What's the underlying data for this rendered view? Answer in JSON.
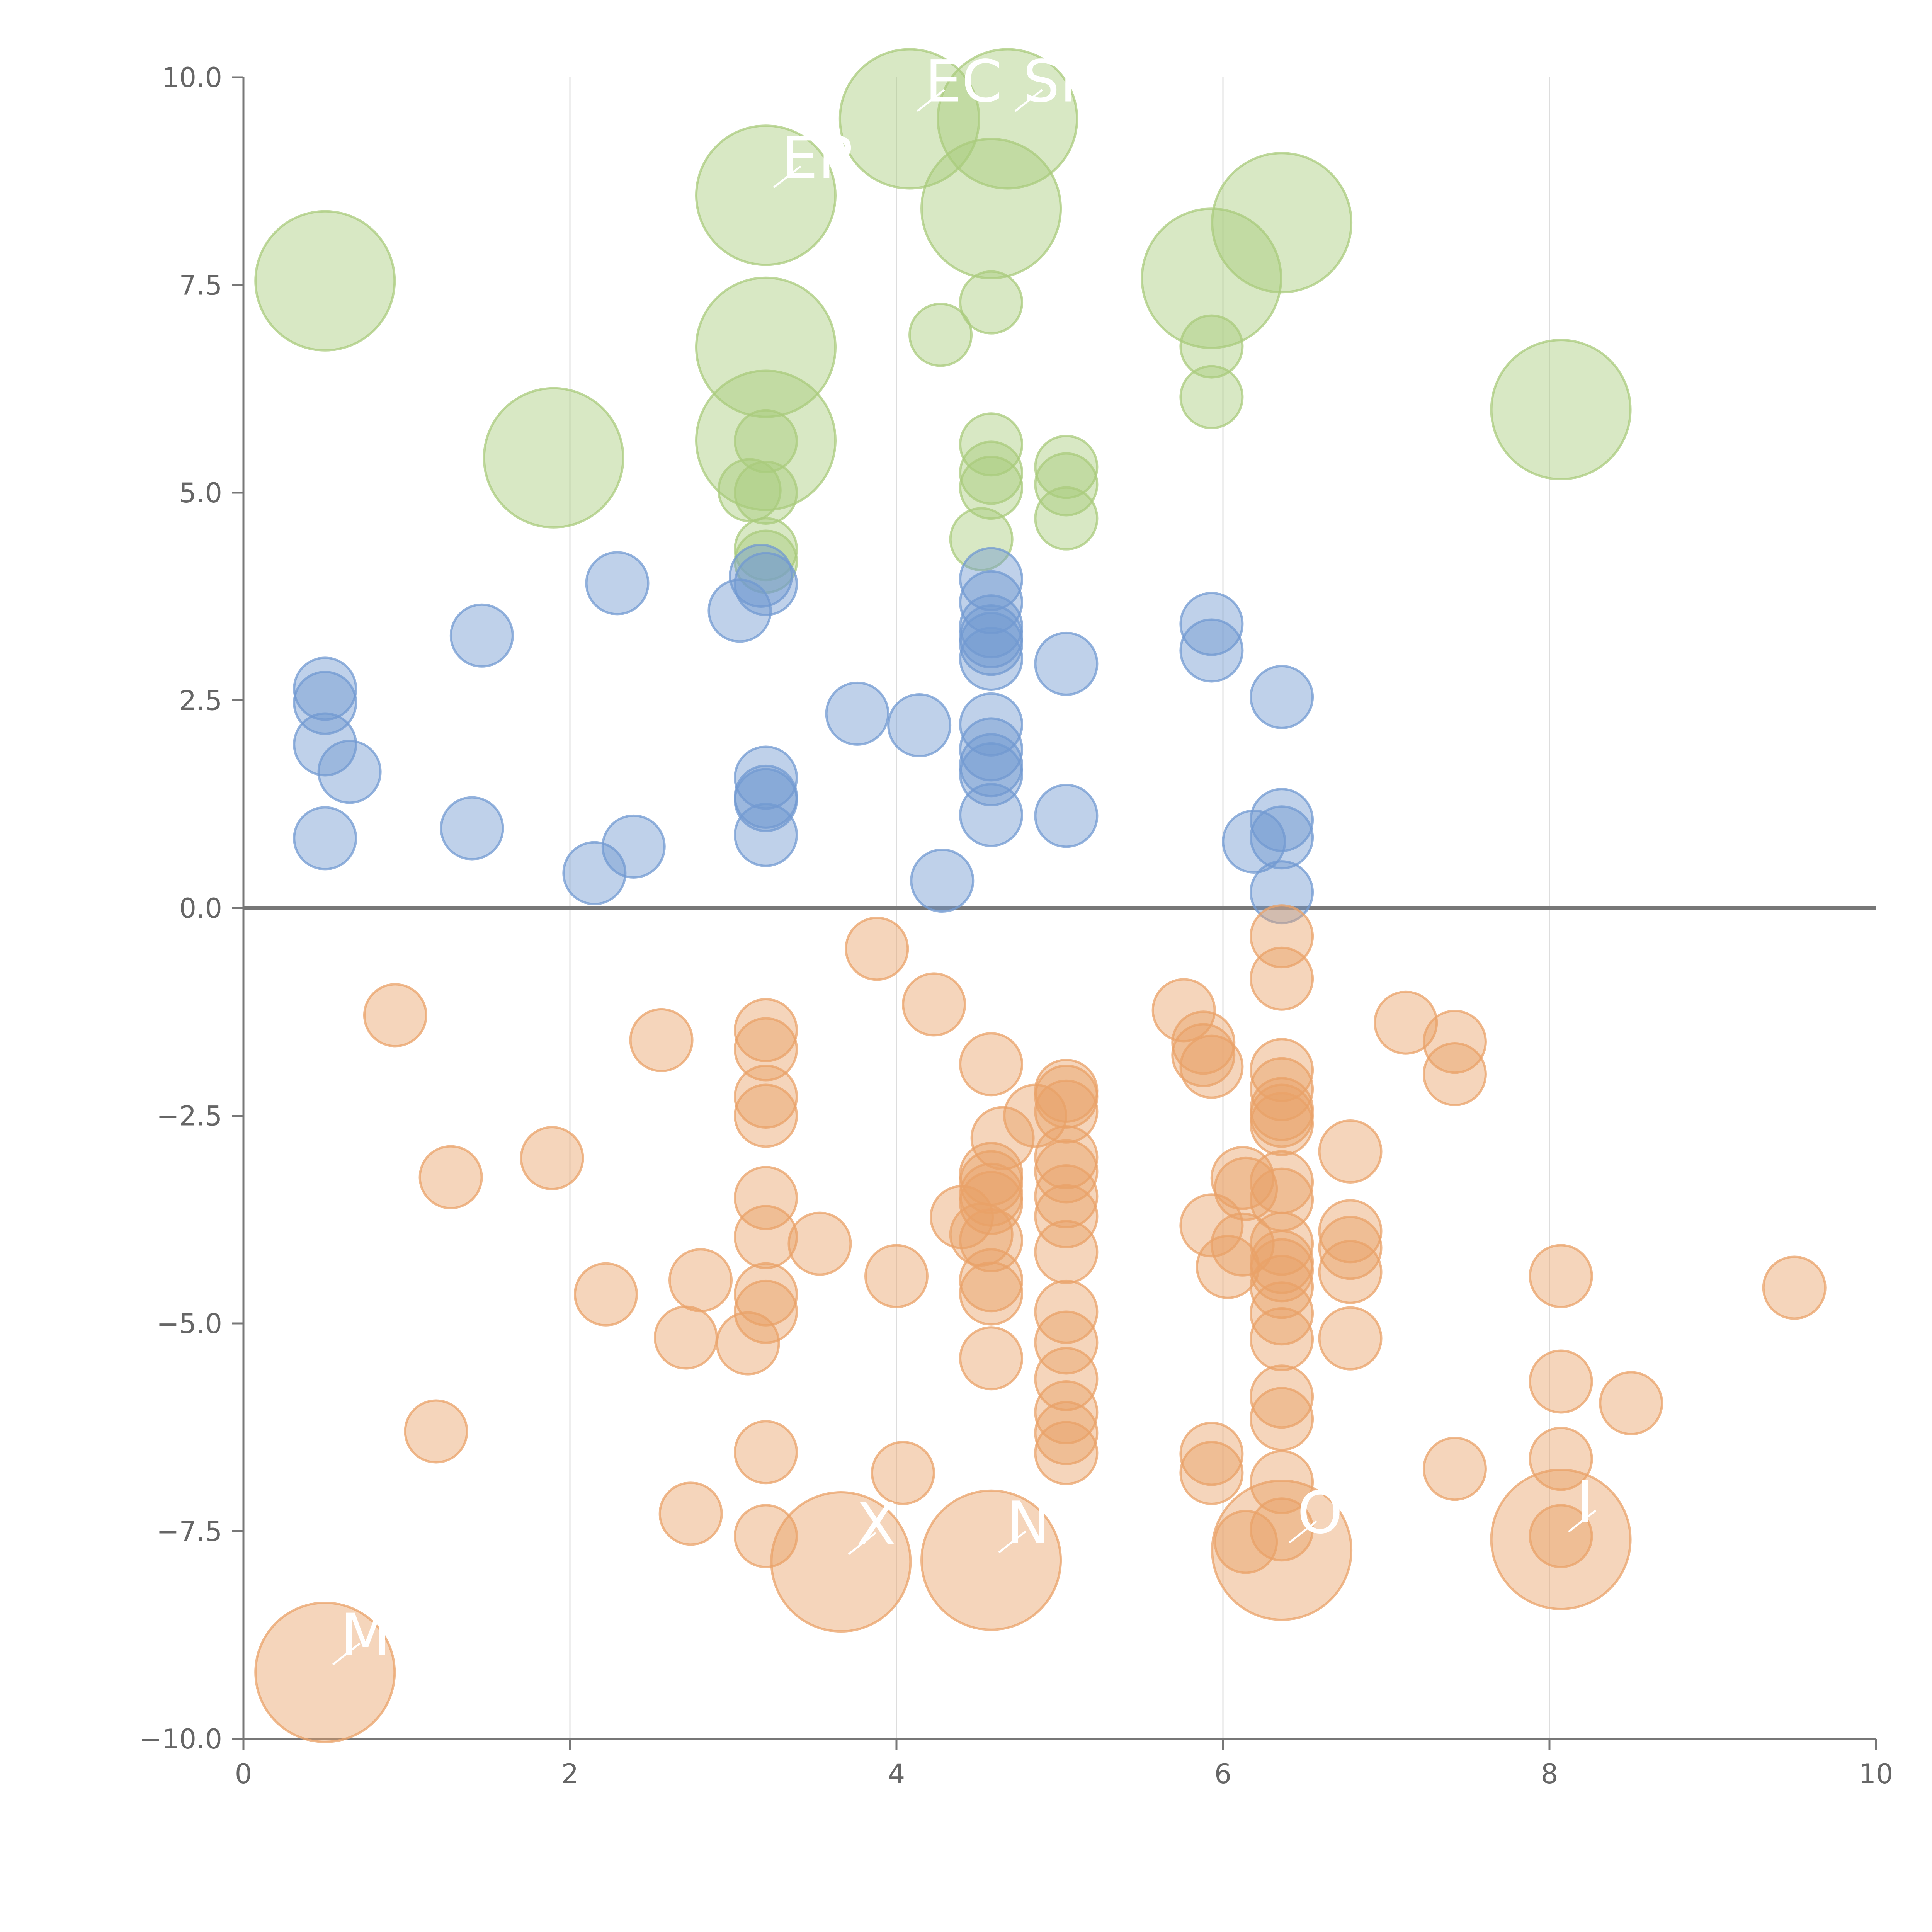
{
  "chart_data": {
    "type": "scatter",
    "title": "",
    "xlabel": "",
    "ylabel": "",
    "xlim": [
      0,
      10
    ],
    "ylim": [
      -10,
      10
    ],
    "x_ticks": [
      "0",
      "2",
      "4",
      "6",
      "8",
      "10"
    ],
    "y_ticks": [
      "10.0",
      "7.5",
      "5.0",
      "2.5",
      "0.0",
      "−2.5",
      "−5.0",
      "−7.5",
      "−10.0"
    ],
    "grid": "vertical",
    "colors": {
      "green": "#a9cb7c",
      "blue": "#7199d1",
      "orange": "#e9a168",
      "axis": "#777777",
      "grid": "#dddddd"
    },
    "series": [
      {
        "name": "green",
        "color": "#a9cb7c",
        "points": [
          {
            "x": 0.5,
            "y": 7.55,
            "s": "l"
          },
          {
            "x": 1.9,
            "y": 5.42,
            "s": "l"
          },
          {
            "x": 3.2,
            "y": 8.58,
            "s": "l"
          },
          {
            "x": 3.2,
            "y": 6.75,
            "s": "l"
          },
          {
            "x": 3.2,
            "y": 5.63,
            "s": "l"
          },
          {
            "x": 4.08,
            "y": 9.5,
            "s": "l"
          },
          {
            "x": 4.68,
            "y": 9.5,
            "s": "l"
          },
          {
            "x": 4.58,
            "y": 8.42,
            "s": "l"
          },
          {
            "x": 5.93,
            "y": 7.58,
            "s": "l"
          },
          {
            "x": 6.36,
            "y": 8.25,
            "s": "l"
          },
          {
            "x": 8.07,
            "y": 6.0,
            "s": "l"
          },
          {
            "x": 3.2,
            "y": 5.62,
            "s": "s"
          },
          {
            "x": 3.1,
            "y": 5.03,
            "s": "s"
          },
          {
            "x": 3.2,
            "y": 5.0,
            "s": "s"
          },
          {
            "x": 3.2,
            "y": 4.32,
            "s": "s"
          },
          {
            "x": 3.2,
            "y": 4.17,
            "s": "s"
          },
          {
            "x": 4.27,
            "y": 6.9,
            "s": "s"
          },
          {
            "x": 4.58,
            "y": 7.29,
            "s": "s"
          },
          {
            "x": 4.58,
            "y": 5.58,
            "s": "s"
          },
          {
            "x": 4.58,
            "y": 5.24,
            "s": "s"
          },
          {
            "x": 4.58,
            "y": 5.06,
            "s": "s"
          },
          {
            "x": 4.52,
            "y": 4.44,
            "s": "s"
          },
          {
            "x": 5.04,
            "y": 5.31,
            "s": "s"
          },
          {
            "x": 5.04,
            "y": 5.1,
            "s": "s"
          },
          {
            "x": 5.04,
            "y": 4.69,
            "s": "s"
          },
          {
            "x": 5.93,
            "y": 6.76,
            "s": "s"
          },
          {
            "x": 5.93,
            "y": 6.15,
            "s": "s"
          }
        ]
      },
      {
        "name": "blue",
        "color": "#7199d1",
        "points": [
          {
            "x": 0.5,
            "y": 2.64
          },
          {
            "x": 0.5,
            "y": 2.47
          },
          {
            "x": 0.5,
            "y": 1.97
          },
          {
            "x": 0.65,
            "y": 1.64
          },
          {
            "x": 0.5,
            "y": 0.84
          },
          {
            "x": 1.4,
            "y": 0.96
          },
          {
            "x": 1.46,
            "y": 3.28
          },
          {
            "x": 2.15,
            "y": 0.42
          },
          {
            "x": 2.29,
            "y": 3.91
          },
          {
            "x": 2.39,
            "y": 0.74
          },
          {
            "x": 3.04,
            "y": 3.58
          },
          {
            "x": 3.17,
            "y": 4.0
          },
          {
            "x": 3.2,
            "y": 3.9
          },
          {
            "x": 3.2,
            "y": 1.57
          },
          {
            "x": 3.2,
            "y": 1.34
          },
          {
            "x": 3.2,
            "y": 1.3
          },
          {
            "x": 3.2,
            "y": 0.88
          },
          {
            "x": 3.76,
            "y": 2.34
          },
          {
            "x": 4.14,
            "y": 2.2
          },
          {
            "x": 4.28,
            "y": 0.33
          },
          {
            "x": 4.58,
            "y": 3.96
          },
          {
            "x": 4.58,
            "y": 3.68
          },
          {
            "x": 4.58,
            "y": 3.39
          },
          {
            "x": 4.58,
            "y": 3.27
          },
          {
            "x": 4.58,
            "y": 3.18
          },
          {
            "x": 4.58,
            "y": 3.0
          },
          {
            "x": 4.58,
            "y": 2.21
          },
          {
            "x": 4.58,
            "y": 1.91
          },
          {
            "x": 4.58,
            "y": 1.72
          },
          {
            "x": 4.58,
            "y": 1.61
          },
          {
            "x": 4.58,
            "y": 1.12
          },
          {
            "x": 5.04,
            "y": 2.94
          },
          {
            "x": 5.04,
            "y": 1.11
          },
          {
            "x": 5.93,
            "y": 3.42
          },
          {
            "x": 5.93,
            "y": 3.1
          },
          {
            "x": 6.19,
            "y": 0.8
          },
          {
            "x": 6.36,
            "y": 2.54
          },
          {
            "x": 6.36,
            "y": 1.06
          },
          {
            "x": 6.36,
            "y": 0.85
          },
          {
            "x": 6.36,
            "y": 0.19
          }
        ]
      },
      {
        "name": "orange",
        "color": "#e9a168",
        "points": [
          {
            "x": 0.5,
            "y": -9.2,
            "s": "l"
          },
          {
            "x": 3.66,
            "y": -7.87,
            "s": "l"
          },
          {
            "x": 4.58,
            "y": -7.85,
            "s": "l"
          },
          {
            "x": 6.36,
            "y": -7.73,
            "s": "l"
          },
          {
            "x": 8.07,
            "y": -7.6,
            "s": "l"
          },
          {
            "x": 0.93,
            "y": -1.29
          },
          {
            "x": 1.27,
            "y": -3.24
          },
          {
            "x": 1.18,
            "y": -6.3
          },
          {
            "x": 1.89,
            "y": -3.01
          },
          {
            "x": 2.22,
            "y": -4.65
          },
          {
            "x": 2.56,
            "y": -1.59
          },
          {
            "x": 2.71,
            "y": -5.17
          },
          {
            "x": 2.8,
            "y": -4.48
          },
          {
            "x": 2.74,
            "y": -7.29
          },
          {
            "x": 3.09,
            "y": -5.24
          },
          {
            "x": 3.2,
            "y": -1.47
          },
          {
            "x": 3.2,
            "y": -1.7
          },
          {
            "x": 3.2,
            "y": -2.27
          },
          {
            "x": 3.2,
            "y": -2.5
          },
          {
            "x": 3.2,
            "y": -3.49
          },
          {
            "x": 3.2,
            "y": -3.96
          },
          {
            "x": 3.2,
            "y": -4.65
          },
          {
            "x": 3.2,
            "y": -4.86
          },
          {
            "x": 3.2,
            "y": -6.55
          },
          {
            "x": 3.2,
            "y": -7.56
          },
          {
            "x": 3.53,
            "y": -4.04
          },
          {
            "x": 3.88,
            "y": -0.49
          },
          {
            "x": 4.0,
            "y": -4.43
          },
          {
            "x": 4.04,
            "y": -6.8
          },
          {
            "x": 4.23,
            "y": -1.16
          },
          {
            "x": 4.4,
            "y": -3.72
          },
          {
            "x": 4.52,
            "y": -3.93
          },
          {
            "x": 4.58,
            "y": -1.88
          },
          {
            "x": 4.58,
            "y": -3.2
          },
          {
            "x": 4.58,
            "y": -3.3
          },
          {
            "x": 4.58,
            "y": -3.45
          },
          {
            "x": 4.58,
            "y": -3.55
          },
          {
            "x": 4.58,
            "y": -4.0
          },
          {
            "x": 4.58,
            "y": -4.48
          },
          {
            "x": 4.58,
            "y": -4.64
          },
          {
            "x": 4.58,
            "y": -5.42
          },
          {
            "x": 4.65,
            "y": -2.77
          },
          {
            "x": 4.85,
            "y": -2.5
          },
          {
            "x": 5.04,
            "y": -2.2
          },
          {
            "x": 5.04,
            "y": -2.27
          },
          {
            "x": 5.04,
            "y": -2.45
          },
          {
            "x": 5.04,
            "y": -3.0
          },
          {
            "x": 5.04,
            "y": -3.17
          },
          {
            "x": 5.04,
            "y": -3.47
          },
          {
            "x": 5.04,
            "y": -3.71
          },
          {
            "x": 5.04,
            "y": -4.14
          },
          {
            "x": 5.04,
            "y": -4.86
          },
          {
            "x": 5.04,
            "y": -5.23
          },
          {
            "x": 5.04,
            "y": -5.67
          },
          {
            "x": 5.04,
            "y": -6.07
          },
          {
            "x": 5.04,
            "y": -6.32
          },
          {
            "x": 5.04,
            "y": -6.56
          },
          {
            "x": 5.76,
            "y": -1.23
          },
          {
            "x": 5.88,
            "y": -1.62
          },
          {
            "x": 5.88,
            "y": -1.77
          },
          {
            "x": 5.93,
            "y": -1.91
          },
          {
            "x": 5.93,
            "y": -3.82
          },
          {
            "x": 5.93,
            "y": -6.57
          },
          {
            "x": 5.93,
            "y": -6.8
          },
          {
            "x": 6.03,
            "y": -4.32
          },
          {
            "x": 6.12,
            "y": -4.05
          },
          {
            "x": 6.12,
            "y": -3.25
          },
          {
            "x": 6.14,
            "y": -3.38
          },
          {
            "x": 6.14,
            "y": -7.63
          },
          {
            "x": 6.36,
            "y": -0.34
          },
          {
            "x": 6.36,
            "y": -0.85
          },
          {
            "x": 6.36,
            "y": -1.95
          },
          {
            "x": 6.36,
            "y": -2.18
          },
          {
            "x": 6.36,
            "y": -2.42
          },
          {
            "x": 6.36,
            "y": -2.5
          },
          {
            "x": 6.36,
            "y": -2.6
          },
          {
            "x": 6.36,
            "y": -3.3
          },
          {
            "x": 6.36,
            "y": -3.51
          },
          {
            "x": 6.36,
            "y": -4.04
          },
          {
            "x": 6.36,
            "y": -4.26
          },
          {
            "x": 6.36,
            "y": -4.36
          },
          {
            "x": 6.36,
            "y": -4.56
          },
          {
            "x": 6.36,
            "y": -4.88
          },
          {
            "x": 6.36,
            "y": -5.19
          },
          {
            "x": 6.36,
            "y": -5.88
          },
          {
            "x": 6.36,
            "y": -6.15
          },
          {
            "x": 6.36,
            "y": -6.91
          },
          {
            "x": 6.36,
            "y": -7.48
          },
          {
            "x": 6.78,
            "y": -2.93
          },
          {
            "x": 6.78,
            "y": -3.89
          },
          {
            "x": 6.78,
            "y": -4.09
          },
          {
            "x": 6.78,
            "y": -4.38
          },
          {
            "x": 6.78,
            "y": -5.18
          },
          {
            "x": 7.12,
            "y": -1.38
          },
          {
            "x": 7.42,
            "y": -1.61
          },
          {
            "x": 7.42,
            "y": -2.0
          },
          {
            "x": 7.42,
            "y": -6.75
          },
          {
            "x": 8.07,
            "y": -4.43
          },
          {
            "x": 8.07,
            "y": -5.7
          },
          {
            "x": 8.07,
            "y": -6.63
          },
          {
            "x": 8.07,
            "y": -7.56
          },
          {
            "x": 8.5,
            "y": -5.96
          },
          {
            "x": 9.5,
            "y": -4.57
          }
        ]
      }
    ],
    "annotations": [
      {
        "text": "EC",
        "x": 4.08,
        "y": 9.5
      },
      {
        "text": "SF",
        "x": 4.68,
        "y": 9.5
      },
      {
        "text": "ER",
        "x": 3.2,
        "y": 8.58
      },
      {
        "text": "X",
        "x": 3.66,
        "y": -7.87
      },
      {
        "text": "N",
        "x": 4.58,
        "y": -7.85
      },
      {
        "text": "O",
        "x": 6.36,
        "y": -7.73
      },
      {
        "text": "I",
        "x": 8.07,
        "y": -7.6
      },
      {
        "text": "M",
        "x": 0.5,
        "y": -9.2
      }
    ]
  }
}
